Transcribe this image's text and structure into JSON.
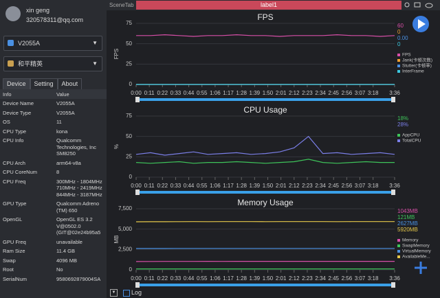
{
  "user": {
    "name": "xin geng",
    "email": "320578311@qq.com"
  },
  "device_select": "V2055A",
  "app_select": "和平精英",
  "tabs": [
    "Device",
    "Setting",
    "About"
  ],
  "table": {
    "header": [
      "Info",
      "Value"
    ],
    "rows": [
      [
        "Device Name",
        "V2055A"
      ],
      [
        "Device Type",
        "V2055A"
      ],
      [
        "OS",
        "11"
      ],
      [
        "CPU Type",
        "kona"
      ],
      [
        "CPU Info",
        "Qualcomm\nTechnologies, Inc\nSM8250"
      ],
      [
        "CPU Arch",
        "arm64-v8a"
      ],
      [
        "CPU CoreNum",
        "8"
      ],
      [
        "CPU Freq",
        "300MHz - 1804MHz\n710MHz - 2419MHz\n844MHz - 3187MHz"
      ],
      [
        "GPU Type",
        "Qualcomm Adreno\n(TM) 650"
      ],
      [
        "OpenGL",
        "OpenGL ES 3.2\nV@0502.0\n(GIT@02e24b95a5"
      ],
      [
        "GPU Freq",
        "unavailable"
      ],
      [
        "Ram Size",
        "11.4 GB"
      ],
      [
        "Swap",
        "4096 MB"
      ],
      [
        "Root",
        "No"
      ],
      [
        "SerialNum",
        "9580692879004SA"
      ]
    ]
  },
  "scene_tab": "SceneTab",
  "label_tab": "label1",
  "log_label": "Log",
  "chart_data": [
    {
      "type": "line",
      "title": "FPS",
      "ylabel": "FPS",
      "x": [
        0,
        12,
        24,
        36,
        48,
        60,
        72,
        84,
        96,
        108,
        120,
        132,
        144,
        156,
        168,
        180,
        192,
        204,
        216
      ],
      "xlim": [
        0,
        216
      ],
      "xticks": [
        {
          "value": 0,
          "label": "0:00"
        },
        {
          "value": 11,
          "label": "0:11"
        },
        {
          "value": 22,
          "label": "0:22"
        },
        {
          "value": 33,
          "label": "0:33"
        },
        {
          "value": 44,
          "label": "0:44"
        },
        {
          "value": 55,
          "label": "0:55"
        },
        {
          "value": 66,
          "label": "1:06"
        },
        {
          "value": 77,
          "label": "1:17"
        },
        {
          "value": 88,
          "label": "1:28"
        },
        {
          "value": 99,
          "label": "1:39"
        },
        {
          "value": 110,
          "label": "1:50"
        },
        {
          "value": 121,
          "label": "2:01"
        },
        {
          "value": 132,
          "label": "2:12"
        },
        {
          "value": 143,
          "label": "2:23"
        },
        {
          "value": 154,
          "label": "2:34"
        },
        {
          "value": 165,
          "label": "2:45"
        },
        {
          "value": 176,
          "label": "2:56"
        },
        {
          "value": 187,
          "label": "3:07"
        },
        {
          "value": 198,
          "label": "3:18"
        },
        {
          "value": 216,
          "label": "3:36"
        }
      ],
      "ylim": [
        0,
        75
      ],
      "yticks": [
        0,
        25,
        50,
        75
      ],
      "grid": true,
      "series": [
        {
          "name": "FPS",
          "color": "#d84fa8",
          "current": "60",
          "values": [
            60,
            60,
            61,
            60,
            59,
            60,
            60,
            61,
            60,
            60,
            59,
            60,
            60,
            60,
            61,
            60,
            60,
            59,
            60
          ]
        },
        {
          "name": "Jank(卡顿次数)",
          "color": "#f0a030",
          "current": "0",
          "values": [
            0,
            0,
            0,
            0,
            0,
            0,
            0,
            0,
            0,
            0,
            0,
            0,
            0,
            0,
            0,
            0,
            0,
            0,
            0
          ]
        },
        {
          "name": "Stutter(卡顿率)",
          "color": "#4a90e2",
          "current": "0.00",
          "values": [
            0,
            0,
            0,
            0,
            0,
            0,
            0,
            0,
            0,
            0,
            0,
            0,
            0,
            0,
            0,
            0,
            0,
            0,
            0
          ]
        },
        {
          "name": "InterFrame",
          "color": "#3cc8e0",
          "current": "0",
          "values": [
            0,
            0,
            0,
            0,
            0,
            0,
            0,
            0,
            0,
            0,
            0,
            0,
            0,
            0,
            0,
            0,
            0,
            0,
            0
          ]
        }
      ]
    },
    {
      "type": "line",
      "title": "CPU Usage",
      "ylabel": "%",
      "x": [
        0,
        12,
        24,
        36,
        48,
        60,
        72,
        84,
        96,
        108,
        120,
        132,
        144,
        156,
        168,
        180,
        192,
        204,
        216
      ],
      "xlim": [
        0,
        216
      ],
      "xticks": [
        {
          "value": 0,
          "label": "0:00"
        },
        {
          "value": 11,
          "label": "0:11"
        },
        {
          "value": 22,
          "label": "0:22"
        },
        {
          "value": 33,
          "label": "0:33"
        },
        {
          "value": 44,
          "label": "0:44"
        },
        {
          "value": 55,
          "label": "0:55"
        },
        {
          "value": 66,
          "label": "1:06"
        },
        {
          "value": 77,
          "label": "1:17"
        },
        {
          "value": 88,
          "label": "1:28"
        },
        {
          "value": 99,
          "label": "1:39"
        },
        {
          "value": 110,
          "label": "1:50"
        },
        {
          "value": 121,
          "label": "2:01"
        },
        {
          "value": 132,
          "label": "2:12"
        },
        {
          "value": 143,
          "label": "2:23"
        },
        {
          "value": 154,
          "label": "2:34"
        },
        {
          "value": 165,
          "label": "2:45"
        },
        {
          "value": 176,
          "label": "2:56"
        },
        {
          "value": 187,
          "label": "3:07"
        },
        {
          "value": 198,
          "label": "3:18"
        },
        {
          "value": 216,
          "label": "3:36"
        }
      ],
      "ylim": [
        0,
        75
      ],
      "yticks": [
        0,
        25,
        50,
        75
      ],
      "grid": true,
      "series": [
        {
          "name": "AppCPU",
          "color": "#3ec45a",
          "current": "18%",
          "values": [
            18,
            17,
            18,
            19,
            17,
            18,
            18,
            19,
            18,
            17,
            18,
            19,
            22,
            18,
            17,
            18,
            19,
            18,
            18
          ]
        },
        {
          "name": "TotalCPU",
          "color": "#7b7fe8",
          "current": "28%",
          "values": [
            28,
            30,
            27,
            29,
            31,
            28,
            29,
            30,
            28,
            29,
            31,
            36,
            50,
            29,
            30,
            28,
            29,
            30,
            28
          ]
        }
      ]
    },
    {
      "type": "line",
      "title": "Memory Usage",
      "ylabel": "MB",
      "x": [
        0,
        12,
        24,
        36,
        48,
        60,
        72,
        84,
        96,
        108,
        120,
        132,
        144,
        156,
        168,
        180,
        192,
        204,
        216
      ],
      "xlim": [
        0,
        216
      ],
      "xticks": [
        {
          "value": 0,
          "label": "0:00"
        },
        {
          "value": 11,
          "label": "0:11"
        },
        {
          "value": 22,
          "label": "0:22"
        },
        {
          "value": 33,
          "label": "0:33"
        },
        {
          "value": 44,
          "label": "0:44"
        },
        {
          "value": 55,
          "label": "0:55"
        },
        {
          "value": 66,
          "label": "1:06"
        },
        {
          "value": 77,
          "label": "1:17"
        },
        {
          "value": 88,
          "label": "1:28"
        },
        {
          "value": 99,
          "label": "1:39"
        },
        {
          "value": 110,
          "label": "1:50"
        },
        {
          "value": 121,
          "label": "2:01"
        },
        {
          "value": 132,
          "label": "2:12"
        },
        {
          "value": 143,
          "label": "2:23"
        },
        {
          "value": 154,
          "label": "2:34"
        },
        {
          "value": 165,
          "label": "2:45"
        },
        {
          "value": 176,
          "label": "2:56"
        },
        {
          "value": 187,
          "label": "3:07"
        },
        {
          "value": 198,
          "label": "3:18"
        },
        {
          "value": 216,
          "label": "3:36"
        }
      ],
      "ylim": [
        0,
        7500
      ],
      "yticks": [
        0,
        {
          "value": 2500,
          "label": "2,500"
        },
        {
          "value": 5000,
          "label": "5,000"
        },
        {
          "value": 7500,
          "label": "7,500"
        }
      ],
      "grid": true,
      "series": [
        {
          "name": "Memory",
          "color": "#d84fa8",
          "current": "1043MB",
          "values": [
            1020,
            1030,
            1035,
            1040,
            1038,
            1042,
            1040,
            1045,
            1043,
            1041,
            1044,
            1043,
            1046,
            1042,
            1043,
            1044,
            1043,
            1042,
            1043
          ]
        },
        {
          "name": "SwapMemory",
          "color": "#3ec45a",
          "current": "121MB",
          "values": [
            121,
            121,
            121,
            121,
            121,
            121,
            121,
            121,
            121,
            121,
            121,
            121,
            121,
            121,
            121,
            121,
            121,
            121,
            121
          ]
        },
        {
          "name": "VirtualMemory",
          "color": "#4a90e2",
          "current": "2627MB",
          "values": [
            2620,
            2622,
            2625,
            2626,
            2627,
            2627,
            2626,
            2627,
            2627,
            2628,
            2627,
            2627,
            2627,
            2626,
            2627,
            2627,
            2627,
            2627,
            2627
          ]
        },
        {
          "name": "AvailableMe...",
          "color": "#e6c84a",
          "current": "5920MB",
          "values": [
            5900,
            5905,
            5910,
            5915,
            5920,
            5918,
            5920,
            5922,
            5920,
            5919,
            5920,
            5921,
            5920,
            5920,
            5919,
            5920,
            5920,
            5921,
            5920
          ]
        }
      ]
    }
  ]
}
